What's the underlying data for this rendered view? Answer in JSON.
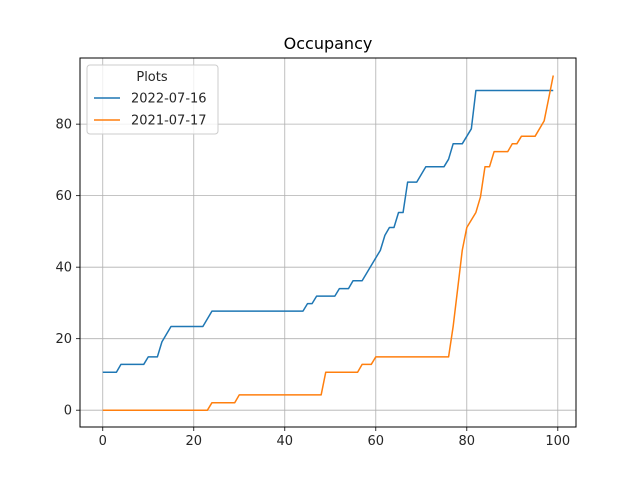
{
  "chart_data": {
    "type": "line",
    "title": "Occupancy",
    "xlabel": "",
    "ylabel": "",
    "xlim": [
      -5,
      104
    ],
    "ylim": [
      -4.7,
      98.5
    ],
    "xticks": [
      0,
      20,
      40,
      60,
      80,
      100
    ],
    "yticks": [
      0,
      20,
      40,
      60,
      80
    ],
    "grid": true,
    "legend": {
      "title": "Plots",
      "placement": "top-left"
    },
    "series": [
      {
        "name": "2022-07-16",
        "color": "#1f77b4",
        "points": [
          [
            0,
            10.6
          ],
          [
            3,
            10.6
          ],
          [
            4,
            12.8
          ],
          [
            9,
            12.8
          ],
          [
            10,
            14.9
          ],
          [
            12,
            14.9
          ],
          [
            13,
            19.1
          ],
          [
            15,
            23.4
          ],
          [
            22,
            23.4
          ],
          [
            24,
            27.7
          ],
          [
            44,
            27.7
          ],
          [
            45,
            29.8
          ],
          [
            46,
            29.8
          ],
          [
            47,
            31.9
          ],
          [
            51,
            31.9
          ],
          [
            52,
            34.0
          ],
          [
            54,
            34.0
          ],
          [
            55,
            36.2
          ],
          [
            57,
            36.2
          ],
          [
            60,
            42.6
          ],
          [
            61,
            44.7
          ],
          [
            62,
            48.9
          ],
          [
            63,
            51.1
          ],
          [
            64,
            51.1
          ],
          [
            65,
            55.3
          ],
          [
            66,
            55.3
          ],
          [
            67,
            63.8
          ],
          [
            69,
            63.8
          ],
          [
            71,
            68.1
          ],
          [
            75,
            68.1
          ],
          [
            76,
            70.2
          ],
          [
            77,
            74.5
          ],
          [
            79,
            74.5
          ],
          [
            81,
            78.7
          ],
          [
            82,
            89.4
          ],
          [
            99,
            89.4
          ]
        ]
      },
      {
        "name": "2021-07-17",
        "color": "#ff7f0e",
        "points": [
          [
            0,
            0
          ],
          [
            23,
            0
          ],
          [
            24,
            2.1
          ],
          [
            29,
            2.1
          ],
          [
            30,
            4.3
          ],
          [
            48,
            4.3
          ],
          [
            49,
            10.6
          ],
          [
            56,
            10.6
          ],
          [
            57,
            12.8
          ],
          [
            59,
            12.8
          ],
          [
            60,
            14.9
          ],
          [
            76,
            14.9
          ],
          [
            77,
            23.4
          ],
          [
            78,
            34.0
          ],
          [
            79,
            44.7
          ],
          [
            80,
            51.1
          ],
          [
            82,
            55.3
          ],
          [
            83,
            59.6
          ],
          [
            84,
            68.1
          ],
          [
            85,
            68.1
          ],
          [
            86,
            72.3
          ],
          [
            89,
            72.3
          ],
          [
            90,
            74.5
          ],
          [
            91,
            74.5
          ],
          [
            92,
            76.6
          ],
          [
            95,
            76.6
          ],
          [
            97,
            80.9
          ],
          [
            98,
            87.2
          ],
          [
            99,
            93.6
          ]
        ]
      }
    ]
  }
}
